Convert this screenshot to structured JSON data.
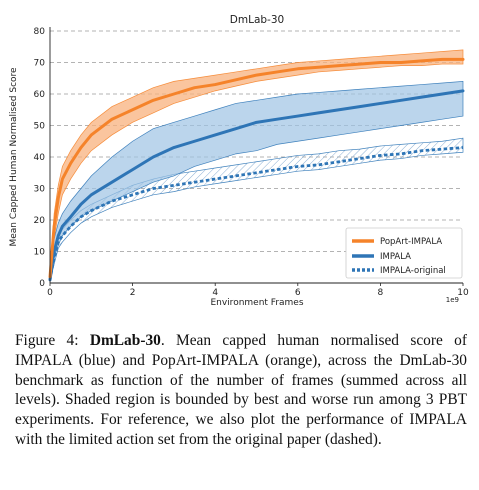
{
  "chart_data": {
    "type": "line",
    "title": "DmLab-30",
    "xlabel": "Environment Frames",
    "ylabel": "Mean Capped Human Normalised Score",
    "x_scale_label": "1e9",
    "xlim": [
      0,
      10
    ],
    "ylim": [
      0,
      80
    ],
    "x_ticks": [
      "0",
      "2",
      "4",
      "6",
      "8",
      "10"
    ],
    "y_ticks": [
      "0",
      "10",
      "20",
      "30",
      "40",
      "50",
      "60",
      "70",
      "80"
    ],
    "grid": "horizontal dashed",
    "legend_position": "lower-right",
    "x": [
      0,
      0.1,
      0.2,
      0.3,
      0.5,
      0.75,
      1,
      1.5,
      2,
      2.5,
      3,
      3.5,
      4,
      4.5,
      5,
      5.5,
      6,
      6.5,
      7,
      7.5,
      8,
      8.5,
      9,
      9.5,
      10
    ],
    "series": [
      {
        "name": "PopArt-IMPALA",
        "color": "#f5832a",
        "style": "solid",
        "values": [
          2,
          18,
          27,
          33,
          38,
          43,
          47,
          52,
          55,
          58,
          60,
          62,
          63,
          64.5,
          66,
          67,
          68,
          68.5,
          69,
          69.5,
          70,
          70,
          70.5,
          71,
          71
        ],
        "band_low": [
          1,
          14,
          22,
          28,
          33,
          38,
          42,
          47,
          51,
          54,
          57,
          59,
          61,
          62.5,
          64,
          65,
          66,
          67,
          67.5,
          68,
          68.5,
          69,
          69,
          69.5,
          69.5
        ],
        "band_high": [
          3,
          22,
          31,
          37,
          42,
          47,
          51,
          56,
          59,
          62,
          64,
          65,
          66,
          67,
          68,
          69,
          70,
          70.5,
          71,
          71.5,
          72,
          72.5,
          73,
          73.5,
          74
        ]
      },
      {
        "name": "IMPALA",
        "color": "#2e75b6",
        "style": "solid",
        "values": [
          1,
          10,
          15,
          18,
          21,
          25,
          28,
          32,
          36,
          40,
          43,
          45,
          47,
          49,
          51,
          52,
          53,
          54,
          55,
          56,
          57,
          58,
          59,
          60,
          61
        ],
        "band_low": [
          0.5,
          8,
          12,
          15,
          18,
          21,
          23,
          26,
          29,
          32,
          34,
          37,
          39,
          41,
          42,
          44,
          45,
          46,
          47,
          48,
          49,
          50,
          51,
          52,
          53
        ],
        "band_high": [
          2,
          14,
          19,
          22,
          26,
          30,
          34,
          40,
          45,
          49,
          51,
          53,
          55,
          57,
          58,
          59,
          60,
          60.5,
          61,
          61.5,
          62,
          62.5,
          63,
          63.5,
          64
        ]
      },
      {
        "name": "IMPALA-original",
        "color": "#2e75b6",
        "style": "dashed",
        "values": [
          1,
          8,
          13,
          15,
          18,
          21,
          23,
          26,
          28,
          30,
          31,
          32,
          33,
          34,
          35,
          36,
          37,
          37.5,
          38.5,
          39.5,
          40.5,
          41,
          42,
          42.5,
          43
        ],
        "band_low": [
          0.5,
          6,
          11,
          13,
          16,
          19,
          21,
          24,
          26,
          28,
          29,
          30.5,
          31.5,
          32.5,
          33.5,
          34.5,
          35.5,
          36,
          37,
          38,
          39,
          39.5,
          40.5,
          41,
          41.5
        ],
        "band_high": [
          1.5,
          10,
          15,
          17,
          20,
          23,
          25,
          28,
          31,
          33,
          34.5,
          35.5,
          36.5,
          37.5,
          38.5,
          39.5,
          40.5,
          41,
          42,
          42.5,
          43.5,
          44,
          44.5,
          45,
          46
        ]
      }
    ]
  },
  "caption": {
    "prefix": "Figure 4: ",
    "bold": "DmLab-30",
    "text": ". Mean capped human normalised score of IMPALA (blue) and PopArt-IMPALA (orange), across the DmLab-30 benchmark as function of the number of frames (summed across all levels). Shaded region is bounded by best and worse run among 3 PBT experiments. For reference, we also plot the performance of IMPALA with the limited action set from the original paper (dashed)."
  }
}
